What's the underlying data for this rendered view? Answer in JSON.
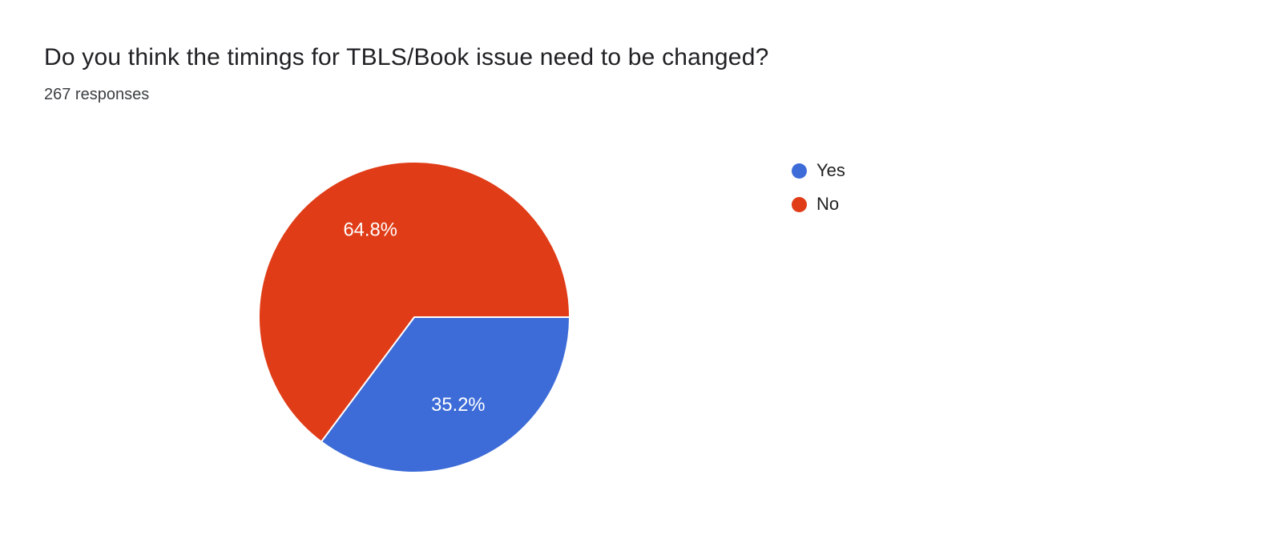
{
  "chart": {
    "title": "Do you think the timings for TBLS/Book issue need to be changed?",
    "subtitle": "267 responses"
  },
  "chart_data": {
    "type": "pie",
    "title": "Do you think the timings for TBLS/Book issue need to be changed?",
    "subtitle": "267 responses",
    "total_responses": 267,
    "start_angle_deg": 90,
    "direction": "clockwise",
    "legend_position": "right",
    "grid": false,
    "slices": [
      {
        "label": "Yes",
        "value": 35.2,
        "display": "35.2%",
        "color": "#3d6cd8"
      },
      {
        "label": "No",
        "value": 64.8,
        "display": "64.8%",
        "color": "#e03c17"
      }
    ]
  }
}
